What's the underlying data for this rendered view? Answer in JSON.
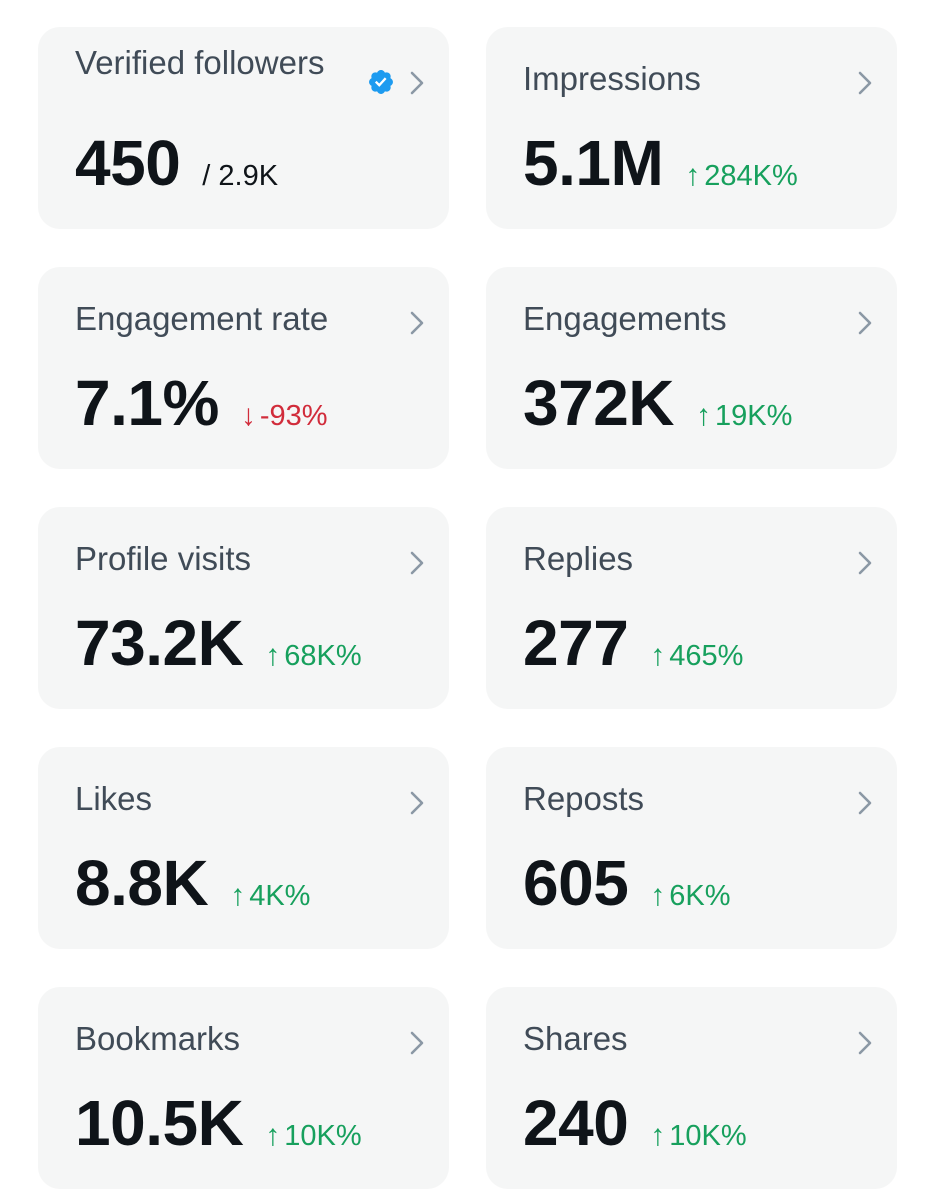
{
  "cards": [
    {
      "label": "Verified followers",
      "value": "450",
      "total": "/ 2.9K",
      "verified_icon": "verified-badge-icon",
      "badge_color": "#1d9bf0"
    },
    {
      "label": "Impressions",
      "value": "5.1M",
      "arrow": "↑",
      "change": "284K%",
      "trend": "up"
    },
    {
      "label": "Engagement rate",
      "value": "7.1%",
      "arrow": "↓",
      "change": "-93%",
      "trend": "down"
    },
    {
      "label": "Engagements",
      "value": "372K",
      "arrow": "↑",
      "change": "19K%",
      "trend": "up"
    },
    {
      "label": "Profile visits",
      "value": "73.2K",
      "arrow": "↑",
      "change": "68K%",
      "trend": "up"
    },
    {
      "label": "Replies",
      "value": "277",
      "arrow": "↑",
      "change": "465%",
      "trend": "up"
    },
    {
      "label": "Likes",
      "value": "8.8K",
      "arrow": "↑",
      "change": "4K%",
      "trend": "up"
    },
    {
      "label": "Reposts",
      "value": "605",
      "arrow": "↑",
      "change": "6K%",
      "trend": "up"
    },
    {
      "label": "Bookmarks",
      "value": "10.5K",
      "arrow": "↑",
      "change": "10K%",
      "trend": "up"
    },
    {
      "label": "Shares",
      "value": "240",
      "arrow": "↑",
      "change": "10K%",
      "trend": "up"
    }
  ],
  "colors": {
    "card_bg": "#f5f6f6",
    "label": "#404b57",
    "value": "#0f1419",
    "up": "#17a05d",
    "down": "#d12c3b",
    "chevron": "#8b98a5"
  },
  "icons": {
    "chevron": "chevron-right-icon"
  }
}
